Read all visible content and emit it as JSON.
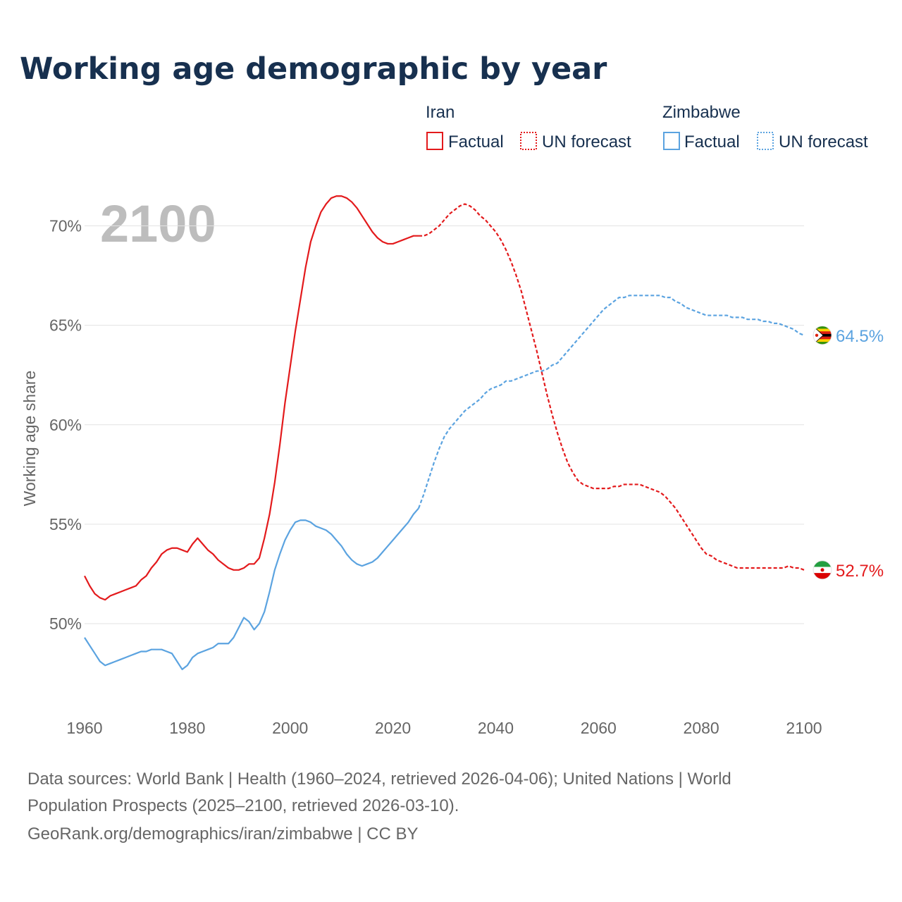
{
  "chart_data": {
    "type": "line",
    "title": "Working age demographic by year",
    "ylabel": "Working age share",
    "xlabel": "",
    "year_label": "2100",
    "xlim": [
      1960,
      2100
    ],
    "ylim": [
      45.5,
      72.5
    ],
    "x_ticks": [
      1960,
      1980,
      2000,
      2020,
      2040,
      2060,
      2080,
      2100
    ],
    "x_tick_labels": [
      "1960",
      "1980",
      "2000",
      "2020",
      "2040",
      "2060",
      "2080",
      "2100"
    ],
    "y_ticks": [
      50,
      55,
      60,
      65,
      70
    ],
    "y_tick_labels": [
      "50%",
      "55%",
      "60%",
      "65%",
      "70%"
    ],
    "legend": {
      "factual_label": "Factual",
      "forecast_label": "UN forecast"
    },
    "series": [
      {
        "name": "Iran",
        "color": "#e31a1c",
        "end_label": "52.7%",
        "flag_icon": "iran-flag-icon",
        "factual": {
          "x": [
            1960,
            1961,
            1962,
            1963,
            1964,
            1965,
            1966,
            1967,
            1968,
            1969,
            1970,
            1971,
            1972,
            1973,
            1974,
            1975,
            1976,
            1977,
            1978,
            1979,
            1980,
            1981,
            1982,
            1983,
            1984,
            1985,
            1986,
            1987,
            1988,
            1989,
            1990,
            1991,
            1992,
            1993,
            1994,
            1995,
            1996,
            1997,
            1998,
            1999,
            2000,
            2001,
            2002,
            2003,
            2004,
            2005,
            2006,
            2007,
            2008,
            2009,
            2010,
            2011,
            2012,
            2013,
            2014,
            2015,
            2016,
            2017,
            2018,
            2019,
            2020,
            2021,
            2022,
            2023,
            2024,
            2025
          ],
          "y": [
            52.4,
            51.9,
            51.5,
            51.3,
            51.2,
            51.4,
            51.5,
            51.6,
            51.7,
            51.8,
            51.9,
            52.2,
            52.4,
            52.8,
            53.1,
            53.5,
            53.7,
            53.8,
            53.8,
            53.7,
            53.6,
            54.0,
            54.3,
            54.0,
            53.7,
            53.5,
            53.2,
            53.0,
            52.8,
            52.7,
            52.7,
            52.8,
            53.0,
            53.0,
            53.3,
            54.3,
            55.5,
            57.1,
            59.0,
            61.1,
            62.9,
            64.7,
            66.3,
            67.9,
            69.2,
            70.0,
            70.7,
            71.1,
            71.4,
            71.5,
            71.5,
            71.4,
            71.2,
            70.9,
            70.5,
            70.1,
            69.7,
            69.4,
            69.2,
            69.1,
            69.1,
            69.2,
            69.3,
            69.4,
            69.5,
            69.5
          ]
        },
        "forecast": {
          "x": [
            2025,
            2026,
            2027,
            2028,
            2029,
            2030,
            2031,
            2032,
            2033,
            2034,
            2035,
            2036,
            2037,
            2038,
            2039,
            2040,
            2041,
            2042,
            2043,
            2044,
            2045,
            2046,
            2047,
            2048,
            2049,
            2050,
            2051,
            2052,
            2053,
            2054,
            2055,
            2056,
            2057,
            2058,
            2059,
            2060,
            2061,
            2062,
            2063,
            2064,
            2065,
            2066,
            2067,
            2068,
            2069,
            2070,
            2071,
            2072,
            2073,
            2074,
            2075,
            2076,
            2077,
            2078,
            2079,
            2080,
            2081,
            2082,
            2083,
            2084,
            2085,
            2086,
            2087,
            2088,
            2089,
            2090,
            2091,
            2092,
            2093,
            2094,
            2095,
            2096,
            2097,
            2098,
            2099,
            2100
          ],
          "y": [
            69.5,
            69.5,
            69.6,
            69.8,
            70.0,
            70.3,
            70.6,
            70.8,
            71.0,
            71.1,
            71.0,
            70.8,
            70.5,
            70.3,
            70.0,
            69.7,
            69.3,
            68.8,
            68.2,
            67.5,
            66.7,
            65.7,
            64.7,
            63.7,
            62.6,
            61.5,
            60.5,
            59.6,
            58.8,
            58.1,
            57.6,
            57.2,
            57.0,
            56.9,
            56.8,
            56.8,
            56.8,
            56.8,
            56.9,
            56.9,
            57.0,
            57.0,
            57.0,
            57.0,
            56.9,
            56.8,
            56.7,
            56.6,
            56.4,
            56.1,
            55.8,
            55.4,
            55.0,
            54.6,
            54.2,
            53.8,
            53.5,
            53.4,
            53.2,
            53.1,
            53.0,
            52.9,
            52.8,
            52.8,
            52.8,
            52.8,
            52.8,
            52.8,
            52.8,
            52.8,
            52.8,
            52.8,
            52.9,
            52.8,
            52.8,
            52.7
          ]
        }
      },
      {
        "name": "Zimbabwe",
        "color": "#5ba3e0",
        "end_label": "64.5%",
        "flag_icon": "zimbabwe-flag-icon",
        "factual": {
          "x": [
            1960,
            1961,
            1962,
            1963,
            1964,
            1965,
            1966,
            1967,
            1968,
            1969,
            1970,
            1971,
            1972,
            1973,
            1974,
            1975,
            1976,
            1977,
            1978,
            1979,
            1980,
            1981,
            1982,
            1983,
            1984,
            1985,
            1986,
            1987,
            1988,
            1989,
            1990,
            1991,
            1992,
            1993,
            1994,
            1995,
            1996,
            1997,
            1998,
            1999,
            2000,
            2001,
            2002,
            2003,
            2004,
            2005,
            2006,
            2007,
            2008,
            2009,
            2010,
            2011,
            2012,
            2013,
            2014,
            2015,
            2016,
            2017,
            2018,
            2019,
            2020,
            2021,
            2022,
            2023,
            2024,
            2025
          ],
          "y": [
            49.3,
            48.9,
            48.5,
            48.1,
            47.9,
            48.0,
            48.1,
            48.2,
            48.3,
            48.4,
            48.5,
            48.6,
            48.6,
            48.7,
            48.7,
            48.7,
            48.6,
            48.5,
            48.1,
            47.7,
            47.9,
            48.3,
            48.5,
            48.6,
            48.7,
            48.8,
            49.0,
            49.0,
            49.0,
            49.3,
            49.8,
            50.3,
            50.1,
            49.7,
            50.0,
            50.6,
            51.6,
            52.7,
            53.5,
            54.2,
            54.7,
            55.1,
            55.2,
            55.2,
            55.1,
            54.9,
            54.8,
            54.7,
            54.5,
            54.2,
            53.9,
            53.5,
            53.2,
            53.0,
            52.9,
            53.0,
            53.1,
            53.3,
            53.6,
            53.9,
            54.2,
            54.5,
            54.8,
            55.1,
            55.5,
            55.8
          ]
        },
        "forecast": {
          "x": [
            2025,
            2026,
            2027,
            2028,
            2029,
            2030,
            2031,
            2032,
            2033,
            2034,
            2035,
            2036,
            2037,
            2038,
            2039,
            2040,
            2041,
            2042,
            2043,
            2044,
            2045,
            2046,
            2047,
            2048,
            2049,
            2050,
            2051,
            2052,
            2053,
            2054,
            2055,
            2056,
            2057,
            2058,
            2059,
            2060,
            2061,
            2062,
            2063,
            2064,
            2065,
            2066,
            2067,
            2068,
            2069,
            2070,
            2071,
            2072,
            2073,
            2074,
            2075,
            2076,
            2077,
            2078,
            2079,
            2080,
            2081,
            2082,
            2083,
            2084,
            2085,
            2086,
            2087,
            2088,
            2089,
            2090,
            2091,
            2092,
            2093,
            2094,
            2095,
            2096,
            2097,
            2098,
            2099,
            2100
          ],
          "y": [
            55.8,
            56.5,
            57.3,
            58.1,
            58.8,
            59.4,
            59.8,
            60.1,
            60.4,
            60.7,
            60.9,
            61.1,
            61.3,
            61.6,
            61.8,
            61.9,
            62.0,
            62.2,
            62.2,
            62.3,
            62.4,
            62.5,
            62.6,
            62.7,
            62.7,
            62.8,
            63.0,
            63.1,
            63.4,
            63.7,
            64.0,
            64.3,
            64.6,
            64.9,
            65.2,
            65.5,
            65.8,
            66.0,
            66.2,
            66.4,
            66.4,
            66.5,
            66.5,
            66.5,
            66.5,
            66.5,
            66.5,
            66.5,
            66.4,
            66.4,
            66.2,
            66.1,
            65.9,
            65.8,
            65.7,
            65.6,
            65.5,
            65.5,
            65.5,
            65.5,
            65.5,
            65.4,
            65.4,
            65.4,
            65.3,
            65.3,
            65.3,
            65.2,
            65.2,
            65.1,
            65.1,
            65.0,
            64.9,
            64.8,
            64.6,
            64.5
          ]
        }
      }
    ],
    "sources": [
      "Data sources: World Bank | Health (1960–2024, retrieved 2026-04-06); United Nations | World",
      "Population Prospects (2025–2100, retrieved 2026-03-10).",
      "GeoRank.org/demographics/iran/zimbabwe | CC BY"
    ]
  }
}
